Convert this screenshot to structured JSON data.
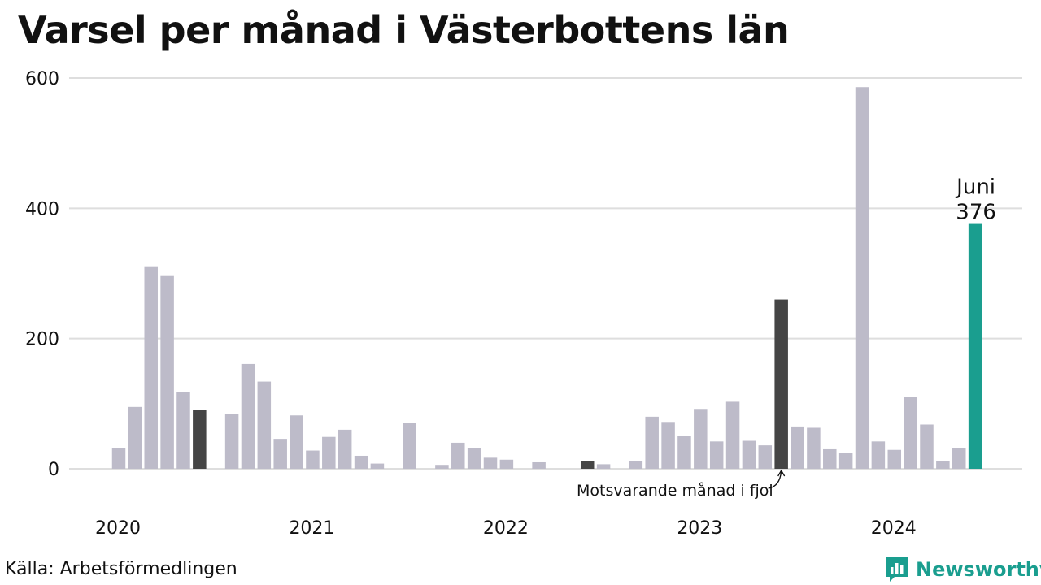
{
  "title": "Varsel per månad i Västerbottens län",
  "source": "Källa: Arbetsförmedlingen",
  "brand": {
    "name": "Newsworthy",
    "logo_icon": "bar-chart-logo-icon"
  },
  "colors": {
    "default": "#bdbbc9",
    "comparison": "#454545",
    "current": "#1a9e8f",
    "grid": "#dedede"
  },
  "chart_data": {
    "type": "bar",
    "title": "Varsel per månad i Västerbottens län",
    "xlabel": "",
    "ylabel": "",
    "ylim": [
      0,
      600
    ],
    "yticks": [
      0,
      200,
      400,
      600
    ],
    "xtick_labels": [
      "2020",
      "2021",
      "2022",
      "2023",
      "2024"
    ],
    "grid": true,
    "values": [
      32,
      95,
      311,
      296,
      118,
      90,
      0,
      84,
      161,
      134,
      46,
      82,
      28,
      49,
      60,
      20,
      8,
      0,
      71,
      0,
      6,
      40,
      32,
      17,
      14,
      0,
      10,
      0,
      0,
      12,
      7,
      0,
      12,
      80,
      72,
      50,
      92,
      42,
      103,
      43,
      36,
      260,
      65,
      63,
      30,
      24,
      586,
      42,
      29,
      110,
      68,
      12,
      32,
      376
    ],
    "comparison_indices": [
      5,
      29,
      41
    ],
    "current_index": 53,
    "highlight": {
      "label": "Juni",
      "value": "376"
    },
    "annotation": "Motsvarande månad i fjol"
  }
}
